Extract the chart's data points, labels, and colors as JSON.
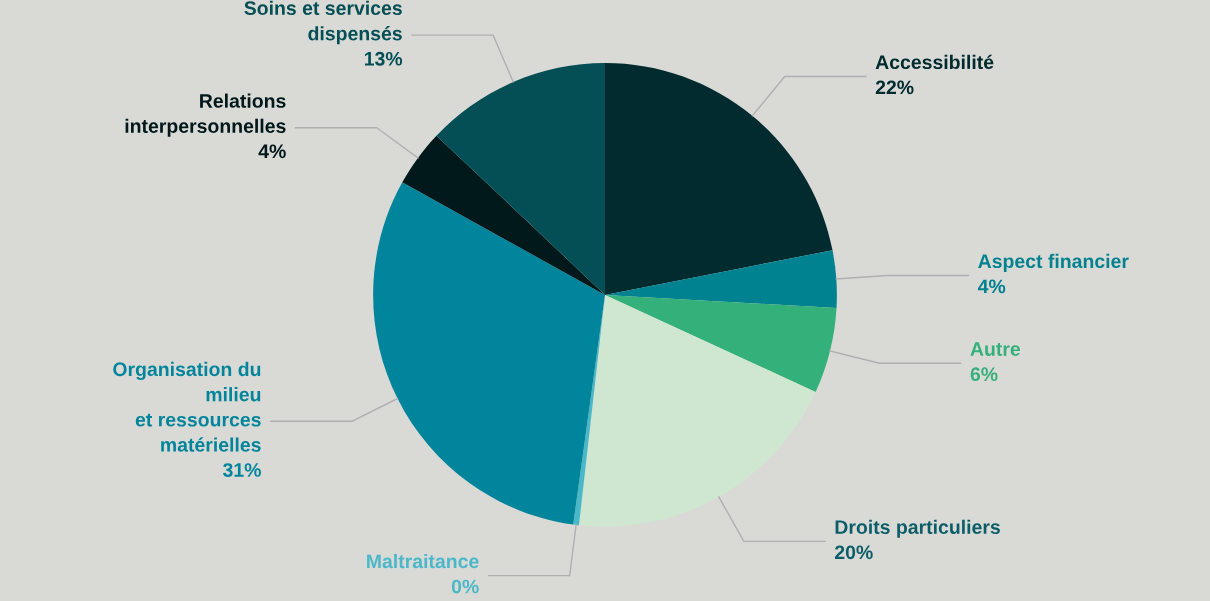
{
  "chart_data": {
    "type": "pie",
    "categories": [
      "Accessibilité",
      "Aspect financier",
      "Autre",
      "Droits particuliers",
      "Maltraitance",
      "Organisation du\nmilieu\net ressources\nmatérielles",
      "Relations\ninterpersonnelles",
      "Soins et services\ndispensés"
    ],
    "values": [
      22,
      4,
      6,
      20,
      0.4,
      31,
      4,
      13
    ],
    "value_labels": [
      "22%",
      "4%",
      "6%",
      "20%",
      "0%",
      "31%",
      "4%",
      "13%"
    ],
    "colors": [
      "#022b2f",
      "#008291",
      "#34b07a",
      "#cfe6d0",
      "#4ab8c8",
      "#00859c",
      "#02191b",
      "#034f55"
    ],
    "legend": false
  }
}
